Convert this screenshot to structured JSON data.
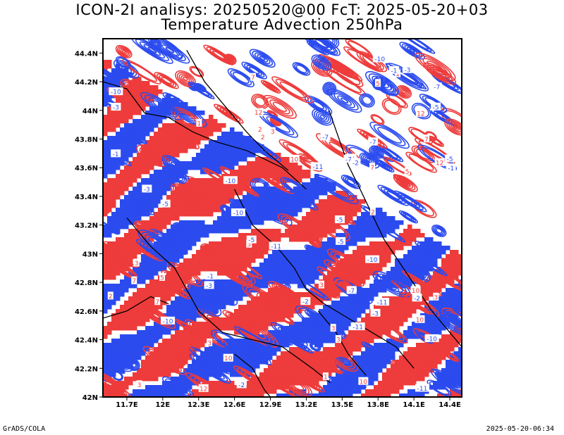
{
  "header": {
    "title_line1": "ICON-2I analisys: 20250520@00 FcT: 2025-05-20+03",
    "title_line2": "Temperature Advection 250hPa"
  },
  "footer": {
    "left": "GrADS/COLA",
    "right": "2025-05-20-06:34"
  },
  "map": {
    "lon_range": [
      11.5,
      14.5
    ],
    "lat_range": [
      42.0,
      44.5
    ],
    "x_ticks": [
      "11.7E",
      "12E",
      "12.3E",
      "12.6E",
      "12.9E",
      "13.2E",
      "13.5E",
      "13.8E",
      "14.1E",
      "14.4E"
    ],
    "x_tick_values": [
      11.7,
      12.0,
      12.3,
      12.6,
      12.9,
      13.2,
      13.5,
      13.8,
      14.1,
      14.4
    ],
    "y_ticks": [
      "42N",
      "42.2N",
      "42.4N",
      "42.6N",
      "42.8N",
      "43N",
      "43.2N",
      "43.4N",
      "43.6N",
      "43.8N",
      "44N",
      "44.2N",
      "44.4N"
    ],
    "y_tick_values": [
      42.0,
      42.2,
      42.4,
      42.6,
      42.8,
      43.0,
      43.2,
      43.4,
      43.6,
      43.8,
      44.0,
      44.2,
      44.4
    ],
    "colors": {
      "warm_advection": "#ee3b3b",
      "cold_advection": "#2b4bef",
      "boundaries": "#000000",
      "background": "#ffffff"
    },
    "contour_labels": [
      "-2",
      "-1",
      "1",
      "2",
      "-3",
      "3",
      "-5",
      "5",
      "-7",
      "7",
      "-10",
      "10",
      "-11",
      "-13",
      "12"
    ]
  }
}
